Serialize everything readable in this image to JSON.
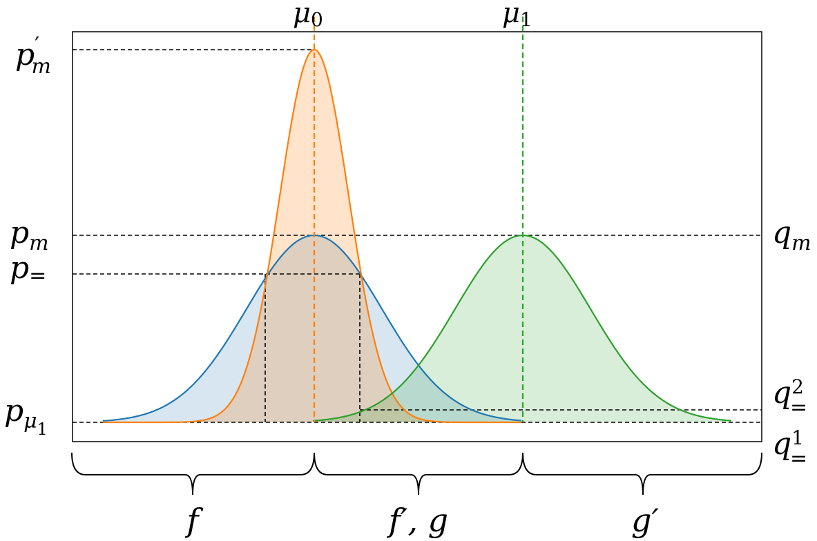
{
  "top_labels": {
    "mu0": {
      "base": "μ",
      "sub": "0"
    },
    "mu1": {
      "base": "μ",
      "sub": "1"
    }
  },
  "left_labels": {
    "pm_prime": {
      "base": "p",
      "prime": "′",
      "sub": "m"
    },
    "pm": {
      "base": "p",
      "sub": "m"
    },
    "p_eq": {
      "base": "p",
      "sub": "="
    },
    "p_mu1": {
      "base": "p",
      "sub": "μ",
      "subsub": "1"
    }
  },
  "right_labels": {
    "qm": {
      "base": "q",
      "sub": "m"
    },
    "q2": {
      "base": "q",
      "sup": "2",
      "sub": "="
    },
    "q1": {
      "base": "q",
      "sup": "1",
      "sub": "="
    }
  },
  "region_labels": {
    "f": "f",
    "fprime_g": "f′, g",
    "gprime": "g′"
  },
  "colors": {
    "blue": "#1f77b4",
    "orange": "#ff7f0e",
    "green": "#2ca02c",
    "blue_fill": "rgba(31,119,180,0.18)",
    "orange_fill": "rgba(255,127,14,0.22)",
    "green_fill": "rgba(44,160,44,0.18)"
  }
}
